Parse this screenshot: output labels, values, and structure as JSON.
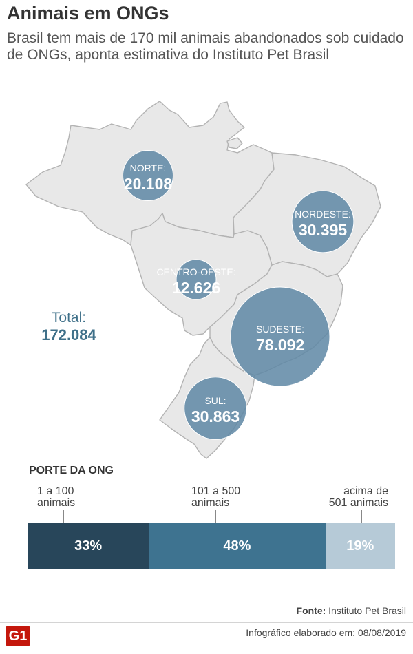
{
  "header": {
    "title": "Animais em ONGs",
    "subtitle": "Brasil tem mais de 170 mil animais abandonados sob cuidado de ONGs, aponta estimativa do Instituto Pet Brasil"
  },
  "total": {
    "label": "Total:",
    "value": "172.084"
  },
  "chart_data": [
    {
      "type": "bubble-map",
      "title": "",
      "series": [
        {
          "region": "NORTE",
          "label": "NORTE:",
          "display": "20.108",
          "value": 20108
        },
        {
          "region": "NORDESTE",
          "label": "NORDESTE:",
          "display": "30.395",
          "value": 30395
        },
        {
          "region": "CENTRO-OESTE",
          "label": "CENTRO-OESTE:",
          "display": "12.626",
          "value": 12626
        },
        {
          "region": "SUDESTE",
          "label": "SUDESTE:",
          "display": "78.092",
          "value": 78092
        },
        {
          "region": "SUL",
          "label": "SUL:",
          "display": "30.863",
          "value": 30863
        }
      ],
      "colors": {
        "bubble": "#5e87a4",
        "region_fill": "#e8e8e8",
        "region_stroke": "#b3b3b3"
      }
    },
    {
      "type": "bar",
      "stacked": true,
      "title": "PORTE DA ONG",
      "unit": "%",
      "categories": [
        "1 a 100 animais",
        "101 a 500 animais",
        "acima de 501 animais"
      ],
      "values": [
        33,
        48,
        19
      ],
      "labels": [
        "33%",
        "48%",
        "19%"
      ],
      "colors": [
        "#28465a",
        "#3e7390",
        "#b6cad7"
      ]
    }
  ],
  "porte": {
    "title": "PORTE DA ONG",
    "cat1": {
      "line1": "1 a 100",
      "line2": "animais"
    },
    "cat2": {
      "line1": "101 a 500",
      "line2": "animais"
    },
    "cat3": {
      "line1": "acima de",
      "line2": "501 animais"
    }
  },
  "footer": {
    "fonte_label": "Fonte:",
    "fonte_value": "Instituto Pet Brasil",
    "logo": "G1",
    "credit": "Infográfico elaborado em: 08/08/2019"
  }
}
